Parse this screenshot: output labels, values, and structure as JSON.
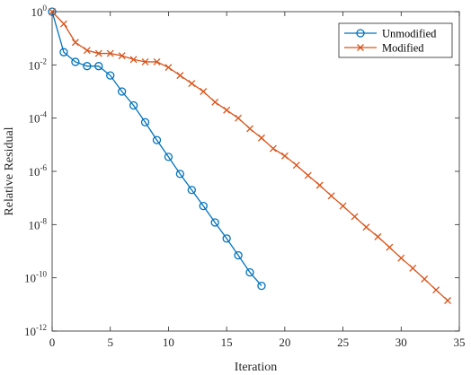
{
  "chart_data": {
    "type": "line",
    "xlabel": "Iteration",
    "ylabel": "Relative Residual",
    "xlim": [
      0,
      35
    ],
    "ylim_exponent": [
      -12,
      0
    ],
    "yscale": "log",
    "xticks": [
      0,
      5,
      10,
      15,
      20,
      25,
      30,
      35
    ],
    "yticks_exponent": [
      -12,
      -10,
      -8,
      -6,
      -4,
      -2,
      0
    ],
    "ytick_base": "10",
    "legend_position": "top-right",
    "grid": false,
    "series": [
      {
        "name": "Unmodified",
        "color": "#0072BD",
        "marker": "circle",
        "x": [
          0,
          1,
          2,
          3,
          4,
          5,
          6,
          7,
          8,
          9,
          10,
          11,
          12,
          13,
          14,
          15,
          16,
          17,
          18
        ],
        "y": [
          1,
          0.03,
          0.013,
          0.009,
          0.009,
          0.004,
          0.001,
          0.0003,
          7e-05,
          1.5e-05,
          3.5e-06,
          8e-07,
          2e-07,
          5e-08,
          1.2e-08,
          3e-09,
          7e-10,
          1.6e-10,
          5e-11
        ]
      },
      {
        "name": "Modified",
        "color": "#D95319",
        "marker": "x",
        "x": [
          0,
          1,
          2,
          3,
          4,
          5,
          6,
          7,
          8,
          9,
          10,
          11,
          12,
          13,
          14,
          15,
          16,
          17,
          18,
          19,
          20,
          21,
          22,
          23,
          24,
          25,
          26,
          27,
          28,
          29,
          30,
          31,
          32,
          33,
          34
        ],
        "y": [
          1,
          0.35,
          0.07,
          0.035,
          0.027,
          0.027,
          0.022,
          0.016,
          0.013,
          0.013,
          0.008,
          0.004,
          0.002,
          0.001,
          0.0004,
          0.0002,
          0.0001,
          4e-05,
          1.8e-05,
          7.2e-06,
          3.8e-06,
          1.7e-06,
          7e-07,
          3e-07,
          1.2e-07,
          5e-08,
          2e-08,
          8e-09,
          3.5e-09,
          1.4e-09,
          5.5e-10,
          2.3e-10,
          9e-11,
          3.5e-11,
          1.4e-11
        ]
      }
    ]
  }
}
